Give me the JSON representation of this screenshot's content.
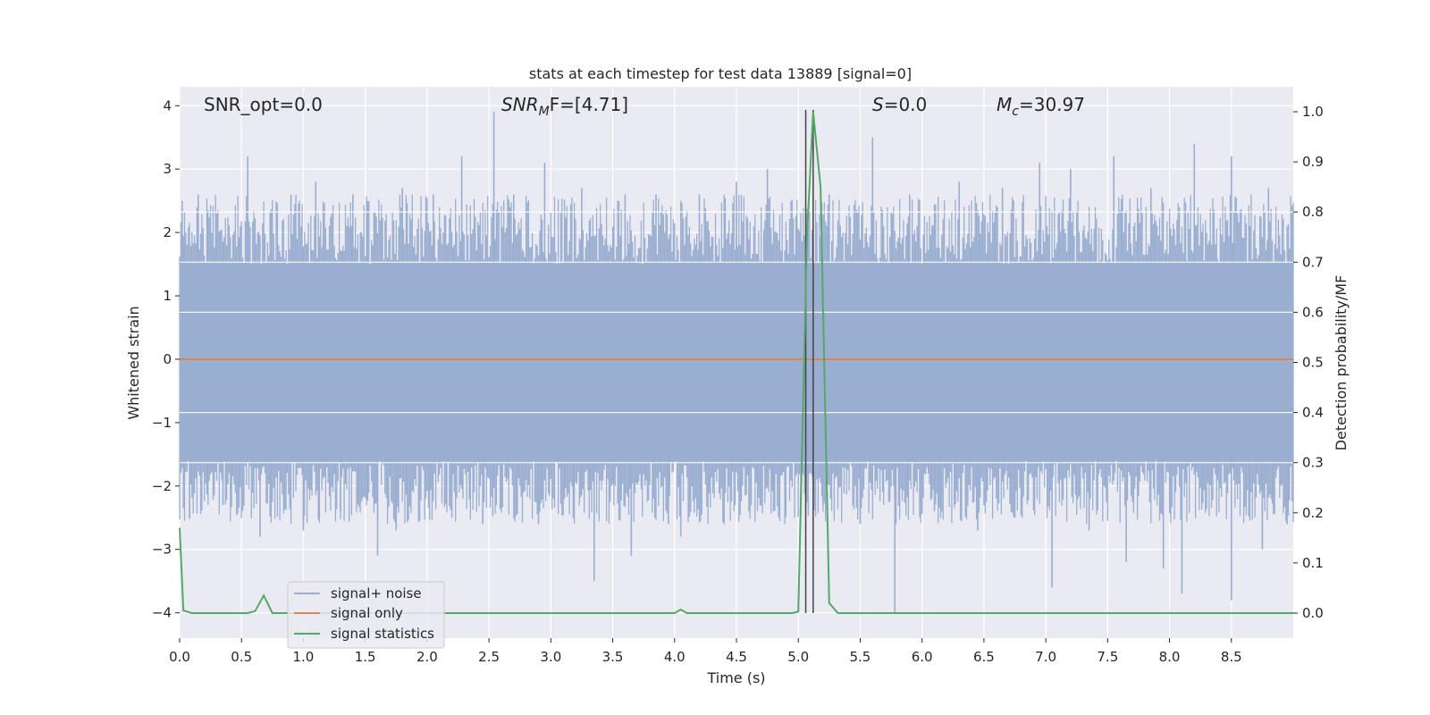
{
  "chart_data": {
    "type": "line",
    "title": "stats at each timestep for test data 13889 [signal=0]",
    "xlabel": "Time (s)",
    "ylabel": "Whitened strain",
    "y2label": "Detection probability/MF",
    "xlim": [
      0,
      9.0
    ],
    "ylim": [
      -4.4,
      4.3
    ],
    "y2lim": [
      -0.05,
      1.05
    ],
    "xticks": [
      "0.0",
      "0.5",
      "1.0",
      "1.5",
      "2.0",
      "2.5",
      "3.0",
      "3.5",
      "4.0",
      "4.5",
      "5.0",
      "5.5",
      "6.0",
      "6.5",
      "7.0",
      "7.5",
      "8.0",
      "8.5"
    ],
    "xtick_values": [
      0,
      0.5,
      1,
      1.5,
      2,
      2.5,
      3,
      3.5,
      4,
      4.5,
      5,
      5.5,
      6,
      6.5,
      7,
      7.5,
      8,
      8.5
    ],
    "yticks": [
      "−4",
      "−3",
      "−2",
      "−1",
      "0",
      "1",
      "2",
      "3",
      "4"
    ],
    "ytick_values": [
      -4,
      -3,
      -2,
      -1,
      0,
      1,
      2,
      3,
      4
    ],
    "y2ticks": [
      "0.0",
      "0.1",
      "0.2",
      "0.3",
      "0.4",
      "0.5",
      "0.6",
      "0.7",
      "0.8",
      "0.9",
      "1.0"
    ],
    "y2tick_values": [
      0,
      0.1,
      0.2,
      0.3,
      0.4,
      0.5,
      0.6,
      0.7,
      0.8,
      0.9,
      1.0
    ],
    "grid": true,
    "legend_position": "lower-left",
    "annotations": {
      "snr_opt": "SNR_opt=0.0",
      "snr_mf_main": "SNR",
      "snr_mf_sub": "M",
      "snr_mf_rest": "F=[4.71]",
      "s_main": "S",
      "s_rest": "=0.0",
      "mc_main": "M",
      "mc_sub": "c",
      "mc_rest": "=30.97"
    },
    "series": [
      {
        "name": "signal+ noise",
        "color": "#9aaed1",
        "noise_band": [
          -1.6,
          1.5
        ],
        "spikes": [
          [
            0.02,
            2.5
          ],
          [
            0.15,
            2.6
          ],
          [
            0.55,
            3.2
          ],
          [
            0.9,
            2.6
          ],
          [
            1.1,
            2.8
          ],
          [
            1.4,
            2.6
          ],
          [
            1.8,
            2.7
          ],
          [
            2.05,
            2.6
          ],
          [
            2.28,
            3.2
          ],
          [
            2.54,
            3.9
          ],
          [
            2.7,
            2.6
          ],
          [
            2.95,
            3.1
          ],
          [
            3.25,
            2.7
          ],
          [
            3.6,
            2.6
          ],
          [
            3.85,
            2.6
          ],
          [
            4.2,
            2.6
          ],
          [
            4.5,
            2.8
          ],
          [
            4.75,
            3.0
          ],
          [
            5.25,
            2.6
          ],
          [
            5.6,
            3.5
          ],
          [
            5.9,
            2.6
          ],
          [
            6.3,
            2.8
          ],
          [
            6.65,
            2.7
          ],
          [
            6.95,
            3.1
          ],
          [
            7.2,
            3.0
          ],
          [
            7.55,
            3.2
          ],
          [
            7.85,
            2.7
          ],
          [
            8.2,
            3.4
          ],
          [
            8.5,
            3.2
          ],
          [
            8.8,
            2.7
          ],
          [
            0.08,
            -2.5
          ],
          [
            0.35,
            -2.3
          ],
          [
            0.65,
            -2.8
          ],
          [
            1.0,
            -2.7
          ],
          [
            1.3,
            -2.4
          ],
          [
            1.6,
            -3.1
          ],
          [
            1.75,
            -2.7
          ],
          [
            2.2,
            -2.5
          ],
          [
            2.45,
            -2.6
          ],
          [
            2.9,
            -2.6
          ],
          [
            3.35,
            -3.5
          ],
          [
            3.65,
            -3.1
          ],
          [
            3.95,
            -2.6
          ],
          [
            4.05,
            -2.8
          ],
          [
            4.4,
            -2.6
          ],
          [
            4.8,
            -2.4
          ],
          [
            5.2,
            -2.3
          ],
          [
            5.5,
            -2.6
          ],
          [
            5.78,
            -4.0
          ],
          [
            6.1,
            -2.4
          ],
          [
            6.45,
            -2.7
          ],
          [
            6.75,
            -2.5
          ],
          [
            7.05,
            -3.6
          ],
          [
            7.35,
            -2.7
          ],
          [
            7.65,
            -3.2
          ],
          [
            7.95,
            -3.3
          ],
          [
            8.1,
            -3.7
          ],
          [
            8.5,
            -3.8
          ],
          [
            8.75,
            -3.0
          ],
          [
            8.95,
            -2.6
          ]
        ]
      },
      {
        "name": "signal only",
        "color": "#dd8452",
        "x": [
          0,
          9.0
        ],
        "y": [
          0,
          0
        ]
      },
      {
        "name": "signal statistics",
        "color": "#55a868",
        "axis": "right",
        "x": [
          0.0,
          0.03,
          0.1,
          0.55,
          0.61,
          0.68,
          0.75,
          4.0,
          4.05,
          4.1,
          4.95,
          5.0,
          5.07,
          5.12,
          5.18,
          5.25,
          5.32,
          9.0
        ],
        "y": [
          0.17,
          0.005,
          0.0,
          0.0,
          0.004,
          0.035,
          0.0,
          0.0,
          0.007,
          0.0,
          0.0,
          0.003,
          0.75,
          1.0,
          0.85,
          0.02,
          0.0,
          0.0
        ]
      }
    ],
    "vertical_lines": [
      {
        "x": 5.06,
        "y2_range": [
          0,
          1.0
        ],
        "color": "#444444"
      },
      {
        "x": 5.12,
        "y2_range": [
          0,
          1.0
        ],
        "color": "#444444"
      }
    ]
  }
}
